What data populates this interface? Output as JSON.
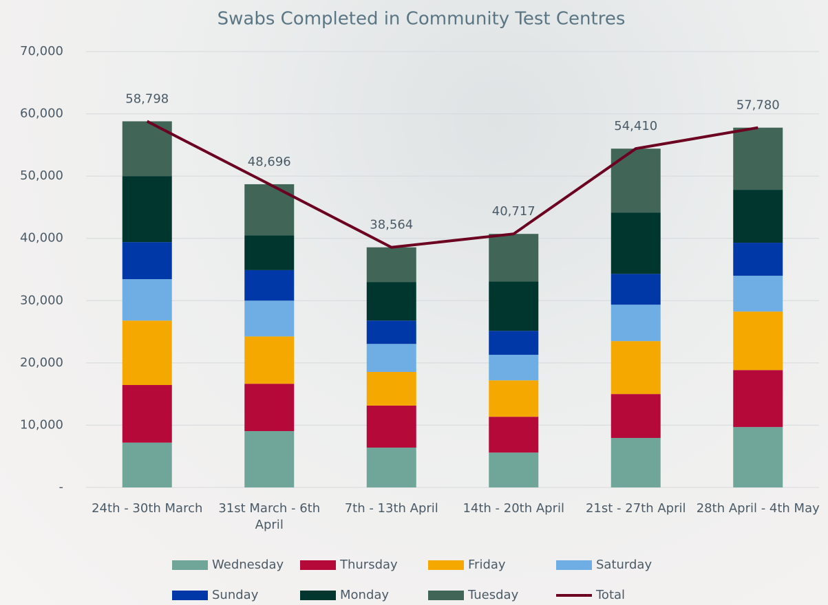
{
  "chart_data": {
    "type": "bar",
    "stacked": true,
    "title": "Swabs Completed in Community Test Centres",
    "categories": [
      "24th - 30th March",
      "31st March - 6th April",
      "7th - 13th April",
      "14th - 20th April",
      "21st - 27th April",
      "28th April - 4th May"
    ],
    "series": [
      {
        "name": "Wednesday",
        "color": "#70a59a",
        "values": [
          7200,
          9050,
          6400,
          5600,
          7950,
          9700
        ]
      },
      {
        "name": "Thursday",
        "color": "#b5093a",
        "values": [
          9250,
          7600,
          6750,
          5750,
          7050,
          9150
        ]
      },
      {
        "name": "Friday",
        "color": "#f5a800",
        "values": [
          10350,
          7600,
          5400,
          5850,
          8500,
          9400
        ]
      },
      {
        "name": "Saturday",
        "color": "#6eaee4",
        "values": [
          6650,
          5750,
          4500,
          4100,
          5850,
          5750
        ]
      },
      {
        "name": "Sunday",
        "color": "#0038a8",
        "values": [
          5950,
          4900,
          3750,
          3850,
          4950,
          5300
        ]
      },
      {
        "name": "Monday",
        "color": "#00362e",
        "values": [
          10600,
          5600,
          6200,
          7950,
          9850,
          8500
        ]
      },
      {
        "name": "Tuesday",
        "color": "#416658",
        "values": [
          8798,
          8196,
          5564,
          7617,
          10260,
          9980
        ]
      },
      {
        "name": "Total",
        "type": "line",
        "color": "#6b0020",
        "values": [
          58798,
          48696,
          38564,
          40717,
          54410,
          57780
        ],
        "value_labels": [
          "58,798",
          "48,696",
          "38,564",
          "40,717",
          "54,410",
          "57,780"
        ]
      }
    ],
    "ylim": [
      0,
      70000
    ],
    "yticks": [
      {
        "value": 0,
        "label": "-"
      },
      {
        "value": 10000,
        "label": "10,000"
      },
      {
        "value": 20000,
        "label": "20,000"
      },
      {
        "value": 30000,
        "label": "30,000"
      },
      {
        "value": 40000,
        "label": "40,000"
      },
      {
        "value": 50000,
        "label": "50,000"
      },
      {
        "value": 60000,
        "label": "60,000"
      },
      {
        "value": 70000,
        "label": "70,000"
      }
    ],
    "grid": true,
    "legend": "bottom"
  }
}
